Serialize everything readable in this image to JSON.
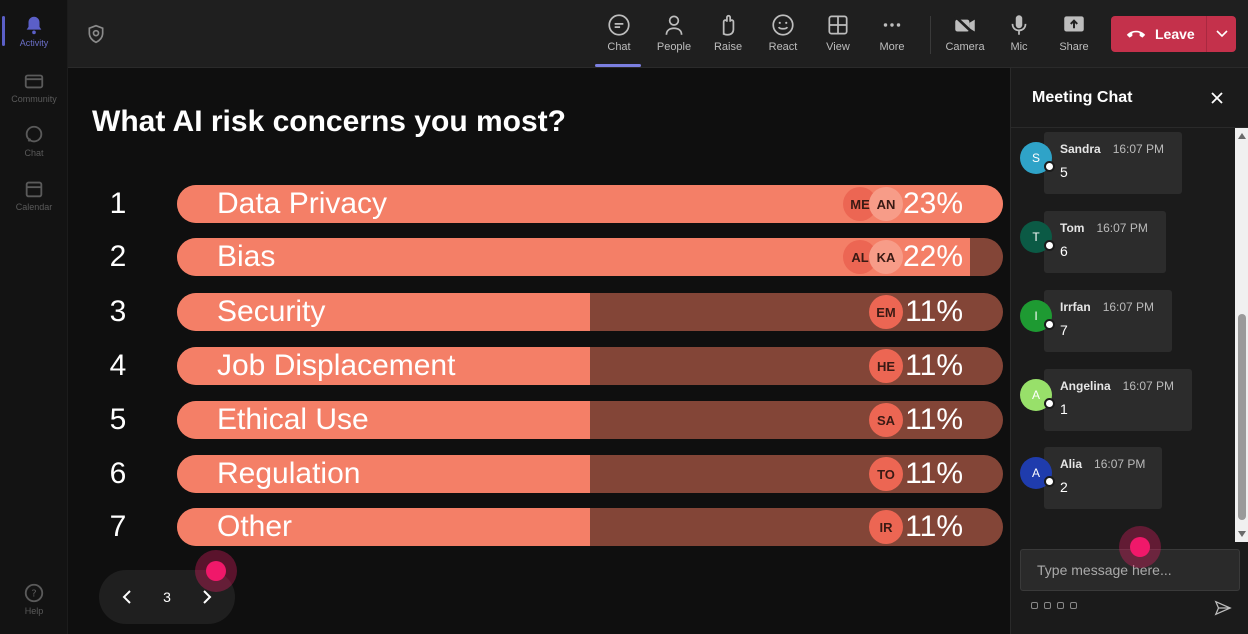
{
  "rail": {
    "items": [
      {
        "label": "Activity",
        "icon": "bell-icon"
      },
      {
        "label": "Community",
        "icon": "community-icon"
      },
      {
        "label": "Chat",
        "icon": "chat-icon"
      },
      {
        "label": "Calendar",
        "icon": "calendar-icon"
      }
    ],
    "help": "Help"
  },
  "toolbar": {
    "chat": "Chat",
    "people": "People",
    "raise": "Raise",
    "react": "React",
    "view": "View",
    "more": "More",
    "camera": "Camera",
    "mic": "Mic",
    "share": "Share",
    "leave": "Leave"
  },
  "poll": {
    "question": "What AI risk concerns you most?",
    "options": [
      {
        "rank": "1",
        "label": "Data Privacy",
        "percent": "23%",
        "fill": 1.0,
        "avatars": [
          "ME",
          "AN"
        ]
      },
      {
        "rank": "2",
        "label": "Bias",
        "percent": "22%",
        "fill": 0.96,
        "avatars": [
          "AL",
          "KA"
        ]
      },
      {
        "rank": "3",
        "label": "Security",
        "percent": "11%",
        "fill": 0.5,
        "avatars": [
          "EM"
        ]
      },
      {
        "rank": "4",
        "label": "Job Displacement",
        "percent": "11%",
        "fill": 0.5,
        "avatars": [
          "HE"
        ]
      },
      {
        "rank": "5",
        "label": "Ethical Use",
        "percent": "11%",
        "fill": 0.5,
        "avatars": [
          "SA"
        ]
      },
      {
        "rank": "6",
        "label": "Regulation",
        "percent": "11%",
        "fill": 0.5,
        "avatars": [
          "TO"
        ]
      },
      {
        "rank": "7",
        "label": "Other",
        "percent": "11%",
        "fill": 0.5,
        "avatars": [
          "IR"
        ]
      }
    ]
  },
  "pager": {
    "page": "3"
  },
  "chat": {
    "title": "Meeting Chat",
    "messages": [
      {
        "initial": "S",
        "author": "Sandra",
        "time": "16:07 PM",
        "text": "5",
        "color": "#2fa3c8"
      },
      {
        "initial": "T",
        "author": "Tom",
        "time": "16:07 PM",
        "text": "6",
        "color": "#0b5a45"
      },
      {
        "initial": "I",
        "author": "Irrfan",
        "time": "16:07 PM",
        "text": "7",
        "color": "#1e9a32"
      },
      {
        "initial": "A",
        "author": "Angelina",
        "time": "16:07 PM",
        "text": "1",
        "color": "#98e06a"
      },
      {
        "initial": "A",
        "author": "Alia",
        "time": "16:07 PM",
        "text": "2",
        "color": "#1f3cad"
      }
    ],
    "placeholder": "Type message here..."
  }
}
